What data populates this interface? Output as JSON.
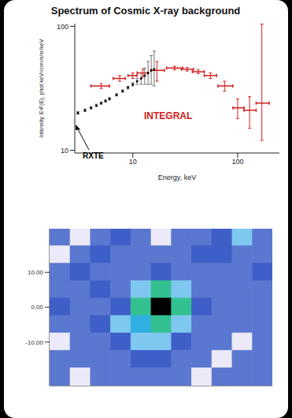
{
  "chart_data": [
    {
      "type": "scatter",
      "title": "Spectrum of Cosmic X-ray background",
      "x_label": "Energy, keV",
      "y_label": "Intensity, E²F(E), phot keV²/cm²/s/sr/keV",
      "log": true,
      "grid": false,
      "xlim": [
        2.8,
        250
      ],
      "xticks": [
        10,
        100
      ],
      "ylim": [
        9.5,
        105
      ],
      "yticks": [
        10,
        100
      ],
      "series": [
        {
          "name": "RXTE",
          "color": "#000000",
          "marker": "dot",
          "x": [
            3,
            3.5,
            4,
            4.5,
            5,
            5.5,
            6,
            7,
            8,
            9,
            10,
            11,
            12,
            13,
            14,
            15,
            16
          ],
          "values": [
            20,
            21,
            22,
            23,
            24,
            25,
            26,
            28,
            30,
            32,
            34,
            36,
            38,
            40,
            42,
            44,
            45
          ],
          "errors": [
            [
              0.5,
              0.5
            ],
            [
              0.5,
              0.5
            ],
            [
              0.5,
              0.5
            ],
            [
              0.5,
              0.5
            ],
            [
              0.5,
              0.5
            ],
            [
              0.5,
              0.5
            ],
            [
              0.6,
              0.6
            ],
            [
              0.6,
              0.6
            ],
            [
              0.7,
              0.7
            ],
            [
              0.8,
              0.8
            ],
            [
              1,
              1
            ],
            [
              2,
              2
            ],
            [
              4,
              4
            ],
            [
              6,
              6
            ],
            [
              8,
              10
            ],
            [
              10,
              14
            ],
            [
              12,
              18
            ]
          ]
        },
        {
          "name": "INTEGRAL",
          "color": "#d42020",
          "marker": "none",
          "x": [
            5,
            7.5,
            10,
            12.5,
            17,
            25,
            33,
            42,
            55,
            75,
            100,
            130,
            170
          ],
          "values": [
            33,
            38,
            40,
            42,
            44,
            46,
            45,
            43,
            40,
            33,
            22,
            21,
            24
          ],
          "errors": [
            [
              1.5,
              1.5
            ],
            [
              2,
              2
            ],
            [
              2,
              2
            ],
            [
              3,
              3
            ],
            [
              8,
              8
            ],
            [
              1.5,
              1.5
            ],
            [
              1.5,
              1.5
            ],
            [
              1.5,
              1.5
            ],
            [
              2,
              2
            ],
            [
              3,
              3
            ],
            [
              4,
              4
            ],
            [
              6,
              6
            ],
            [
              12,
              80
            ]
          ],
          "x_errors": [
            [
              1,
              1
            ],
            [
              1,
              1
            ],
            [
              1,
              1
            ],
            [
              1.5,
              1.5
            ],
            [
              2,
              3
            ],
            [
              4,
              5
            ],
            [
              4,
              5
            ],
            [
              5,
              6
            ],
            [
              7,
              8
            ],
            [
              10,
              15
            ],
            [
              10,
              15
            ],
            [
              15,
              20
            ],
            [
              20,
              30
            ]
          ]
        }
      ]
    },
    {
      "type": "heatmap",
      "tick_labels": "y",
      "grid": false,
      "xlim": [
        -27.5,
        27.5
      ],
      "ylim": [
        -22.5,
        22.5
      ],
      "yticks": [
        {
          "value": 10,
          "label": "10.00"
        },
        {
          "value": 0,
          "label": "0.00"
        },
        {
          "value": -10,
          "label": "-10.00"
        }
      ],
      "x": [
        -25,
        -20,
        -15,
        -10,
        -5,
        0,
        5,
        10,
        15,
        20,
        25
      ],
      "y": [
        20,
        15,
        10,
        5,
        0,
        -5,
        -10,
        -15,
        -20
      ],
      "zlim": [
        0,
        10
      ],
      "values": [
        [
          2,
          1,
          2,
          3,
          2,
          1,
          2,
          2,
          3,
          4,
          2
        ],
        [
          1,
          2,
          3,
          2,
          2,
          2,
          2,
          3,
          3,
          2,
          2
        ],
        [
          2,
          3,
          2,
          2,
          2,
          3,
          2,
          2,
          2,
          2,
          3
        ],
        [
          2,
          2,
          3,
          2,
          4,
          6,
          4,
          2,
          2,
          2,
          2
        ],
        [
          3,
          2,
          2,
          3,
          6,
          10,
          6,
          3,
          2,
          2,
          2
        ],
        [
          2,
          2,
          3,
          4,
          5,
          6,
          4,
          2,
          2,
          2,
          2
        ],
        [
          1,
          2,
          2,
          3,
          4,
          4,
          3,
          2,
          2,
          1,
          2
        ],
        [
          2,
          2,
          2,
          2,
          3,
          3,
          2,
          2,
          1,
          2,
          2
        ],
        [
          2,
          1,
          2,
          2,
          2,
          2,
          2,
          1,
          2,
          2,
          2
        ]
      ]
    }
  ]
}
